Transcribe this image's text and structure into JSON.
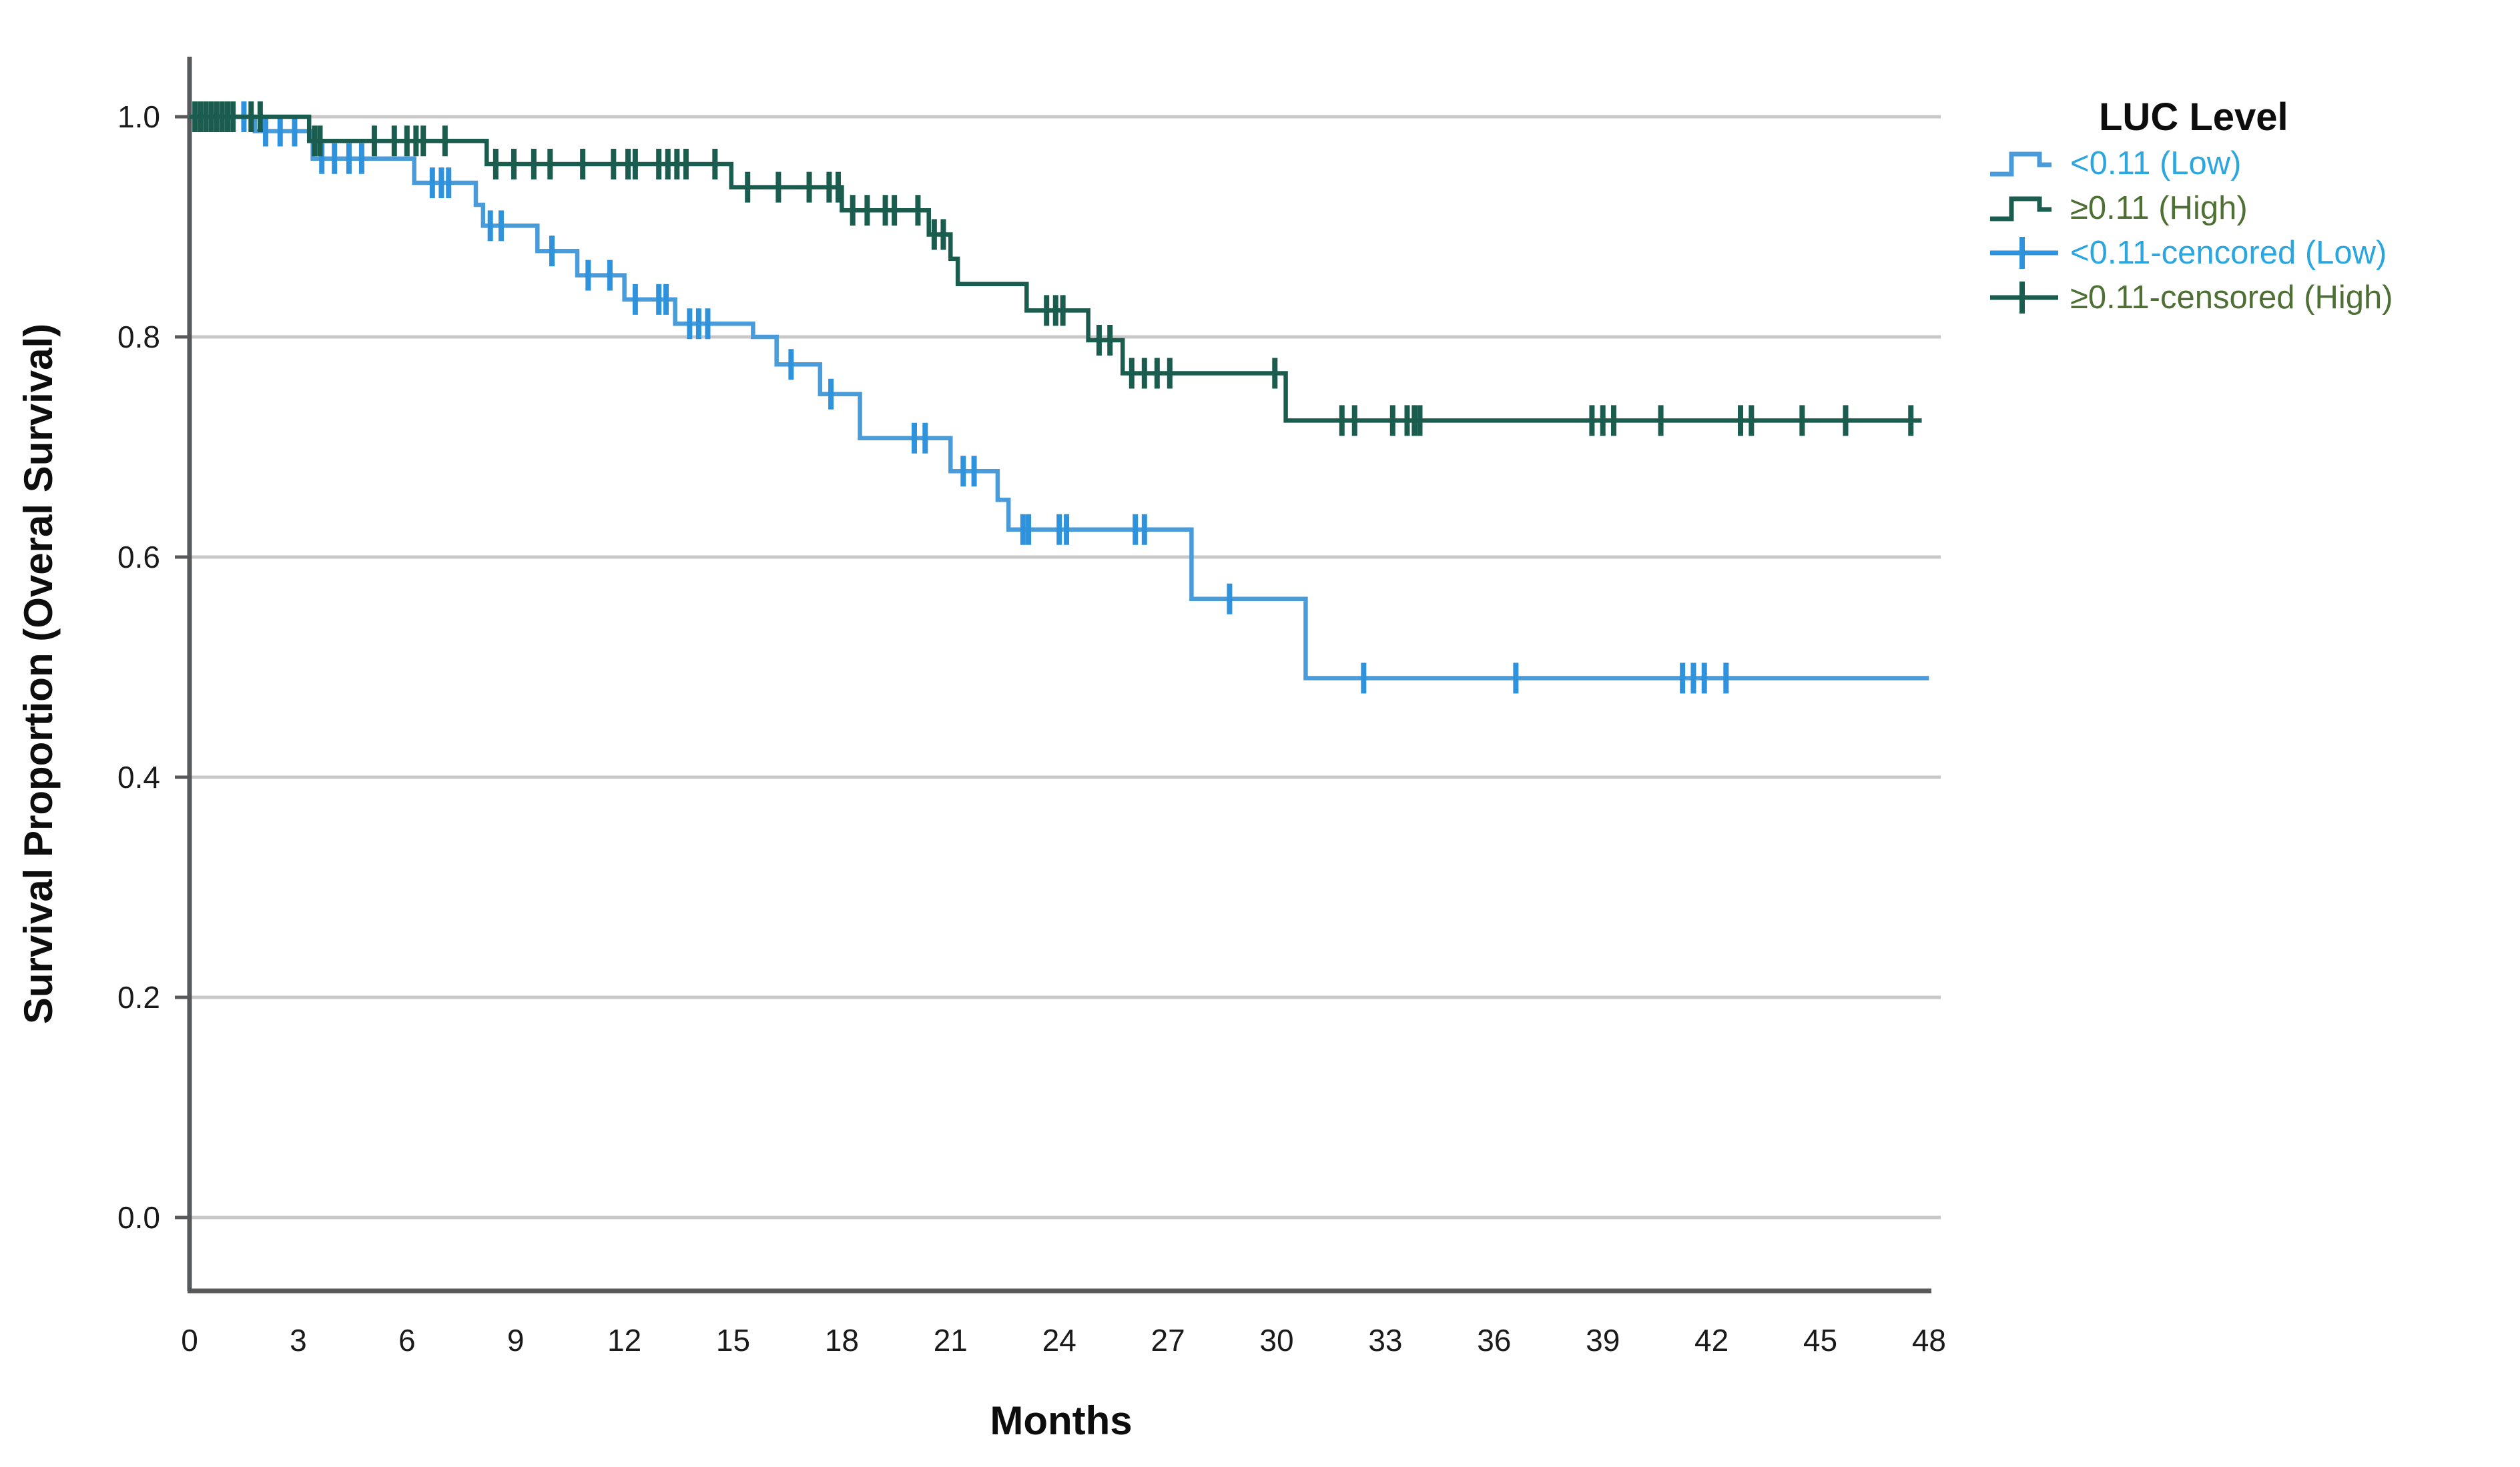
{
  "chart_data": {
    "type": "line",
    "subtype": "kaplan_meier_step",
    "title": "",
    "xlabel": "Months",
    "ylabel": "Survival Proportion (Overal Survival)",
    "xlim": [
      0,
      48
    ],
    "ylim": [
      -0.07,
      1.05
    ],
    "grid": "horizontal",
    "background": "#ffffff",
    "grid_color": "#c8c8c8",
    "axis_color": "#58595b",
    "text_color": "#1a1a1a",
    "xticks": {
      "values": [
        0,
        3,
        6,
        9,
        12,
        15,
        18,
        21,
        24,
        27,
        30,
        33,
        36,
        39,
        42,
        45,
        48
      ],
      "labels": [
        "0",
        "3",
        "6",
        "9",
        "12",
        "15",
        "18",
        "21",
        "24",
        "27",
        "30",
        "33",
        "36",
        "39",
        "42",
        "45",
        "48"
      ]
    },
    "yticks": {
      "values": [
        0.0,
        0.2,
        0.4,
        0.6,
        0.8,
        1.0
      ],
      "labels": [
        "0.0",
        "0.2",
        "0.4",
        "0.6",
        "0.8",
        "1.0"
      ]
    },
    "legend": {
      "title": "LUC Level",
      "position": "top-right",
      "entries": [
        {
          "label": "<0.11 (Low)",
          "text_color": "#2ba6de",
          "line_color": "#4a9bd9",
          "glyph": "step"
        },
        {
          "label": "≥0.11 (High)",
          "text_color": "#4f7034",
          "line_color": "#1a5c4d",
          "glyph": "step"
        },
        {
          "label": "<0.11-cencored (Low)",
          "text_color": "#2ba6de",
          "line_color": "#2e93dc",
          "glyph": "censor"
        },
        {
          "label": "≥0.11-censored (High)",
          "text_color": "#4f7034",
          "line_color": "#1a5c4d",
          "glyph": "censor"
        }
      ]
    },
    "series": [
      {
        "id": "low",
        "name": "<0.11 (Low)",
        "line_color": "#4a9bd9",
        "censor_color": "#2e93dc",
        "start": [
          0,
          1.0
        ],
        "end_month": 48,
        "steps": [
          [
            1.8,
            0.987
          ],
          [
            3.4,
            0.962
          ],
          [
            6.2,
            0.94
          ],
          [
            7.9,
            0.92
          ],
          [
            8.1,
            0.901
          ],
          [
            9.6,
            0.878
          ],
          [
            10.7,
            0.856
          ],
          [
            12.0,
            0.834
          ],
          [
            13.4,
            0.812
          ],
          [
            15.55,
            0.8
          ],
          [
            16.2,
            0.775
          ],
          [
            17.4,
            0.748
          ],
          [
            18.5,
            0.708
          ],
          [
            21.0,
            0.678
          ],
          [
            22.3,
            0.652
          ],
          [
            22.6,
            0.625
          ],
          [
            27.65,
            0.562
          ],
          [
            30.8,
            0.49
          ]
        ],
        "censors": [
          [
            1.5,
            1.0
          ],
          [
            2.1,
            0.987
          ],
          [
            2.5,
            0.987
          ],
          [
            2.9,
            0.987
          ],
          [
            3.65,
            0.962
          ],
          [
            4.0,
            0.962
          ],
          [
            4.4,
            0.962
          ],
          [
            4.75,
            0.962
          ],
          [
            6.7,
            0.94
          ],
          [
            6.95,
            0.94
          ],
          [
            7.15,
            0.94
          ],
          [
            8.3,
            0.901
          ],
          [
            8.6,
            0.901
          ],
          [
            10.0,
            0.878
          ],
          [
            11.0,
            0.856
          ],
          [
            11.6,
            0.856
          ],
          [
            12.3,
            0.834
          ],
          [
            12.95,
            0.834
          ],
          [
            13.15,
            0.834
          ],
          [
            13.8,
            0.812
          ],
          [
            14.05,
            0.812
          ],
          [
            14.3,
            0.812
          ],
          [
            16.6,
            0.775
          ],
          [
            17.7,
            0.748
          ],
          [
            20.0,
            0.708
          ],
          [
            20.3,
            0.708
          ],
          [
            21.35,
            0.678
          ],
          [
            21.65,
            0.678
          ],
          [
            23.0,
            0.625
          ],
          [
            23.15,
            0.625
          ],
          [
            24.0,
            0.625
          ],
          [
            24.2,
            0.625
          ],
          [
            26.1,
            0.625
          ],
          [
            26.35,
            0.625
          ],
          [
            28.7,
            0.562
          ],
          [
            32.4,
            0.49
          ],
          [
            36.6,
            0.49
          ],
          [
            41.2,
            0.49
          ],
          [
            41.5,
            0.49
          ],
          [
            41.8,
            0.49
          ],
          [
            42.4,
            0.49
          ]
        ]
      },
      {
        "id": "high",
        "name": "≥0.11 (High)",
        "line_color": "#1a5c4d",
        "censor_color": "#1a5c4d",
        "start": [
          0,
          1.0
        ],
        "end_month": 47.8,
        "steps": [
          [
            3.3,
            0.978
          ],
          [
            8.2,
            0.957
          ],
          [
            14.95,
            0.936
          ],
          [
            18.0,
            0.915
          ],
          [
            20.4,
            0.893
          ],
          [
            21.0,
            0.871
          ],
          [
            21.2,
            0.848
          ],
          [
            23.1,
            0.824
          ],
          [
            24.8,
            0.797
          ],
          [
            25.75,
            0.767
          ],
          [
            30.25,
            0.724
          ]
        ],
        "censors": [
          [
            0.15,
            1.0
          ],
          [
            0.3,
            1.0
          ],
          [
            0.45,
            1.0
          ],
          [
            0.6,
            1.0
          ],
          [
            0.75,
            1.0
          ],
          [
            0.9,
            1.0
          ],
          [
            1.05,
            1.0
          ],
          [
            1.2,
            1.0
          ],
          [
            1.7,
            1.0
          ],
          [
            1.95,
            1.0
          ],
          [
            3.45,
            0.978
          ],
          [
            3.6,
            0.978
          ],
          [
            5.1,
            0.978
          ],
          [
            5.65,
            0.978
          ],
          [
            6.0,
            0.978
          ],
          [
            6.25,
            0.978
          ],
          [
            6.45,
            0.978
          ],
          [
            7.05,
            0.978
          ],
          [
            8.45,
            0.957
          ],
          [
            8.95,
            0.957
          ],
          [
            9.5,
            0.957
          ],
          [
            9.95,
            0.957
          ],
          [
            10.85,
            0.957
          ],
          [
            11.7,
            0.957
          ],
          [
            12.1,
            0.957
          ],
          [
            12.3,
            0.957
          ],
          [
            12.95,
            0.957
          ],
          [
            13.2,
            0.957
          ],
          [
            13.45,
            0.957
          ],
          [
            13.7,
            0.957
          ],
          [
            14.5,
            0.957
          ],
          [
            15.4,
            0.936
          ],
          [
            16.25,
            0.936
          ],
          [
            17.1,
            0.936
          ],
          [
            17.65,
            0.936
          ],
          [
            17.9,
            0.936
          ],
          [
            18.3,
            0.915
          ],
          [
            18.7,
            0.915
          ],
          [
            19.2,
            0.915
          ],
          [
            19.45,
            0.915
          ],
          [
            20.1,
            0.915
          ],
          [
            20.55,
            0.893
          ],
          [
            20.8,
            0.893
          ],
          [
            23.65,
            0.824
          ],
          [
            23.9,
            0.824
          ],
          [
            24.1,
            0.824
          ],
          [
            25.1,
            0.797
          ],
          [
            25.4,
            0.797
          ],
          [
            26.0,
            0.767
          ],
          [
            26.35,
            0.767
          ],
          [
            26.7,
            0.767
          ],
          [
            27.05,
            0.767
          ],
          [
            29.95,
            0.767
          ],
          [
            31.8,
            0.724
          ],
          [
            32.15,
            0.724
          ],
          [
            33.2,
            0.724
          ],
          [
            33.6,
            0.724
          ],
          [
            33.8,
            0.724
          ],
          [
            33.95,
            0.724
          ],
          [
            38.7,
            0.724
          ],
          [
            39.0,
            0.724
          ],
          [
            39.3,
            0.724
          ],
          [
            40.6,
            0.724
          ],
          [
            42.8,
            0.724
          ],
          [
            43.1,
            0.724
          ],
          [
            44.5,
            0.724
          ],
          [
            45.7,
            0.724
          ],
          [
            47.5,
            0.724
          ]
        ]
      }
    ]
  }
}
